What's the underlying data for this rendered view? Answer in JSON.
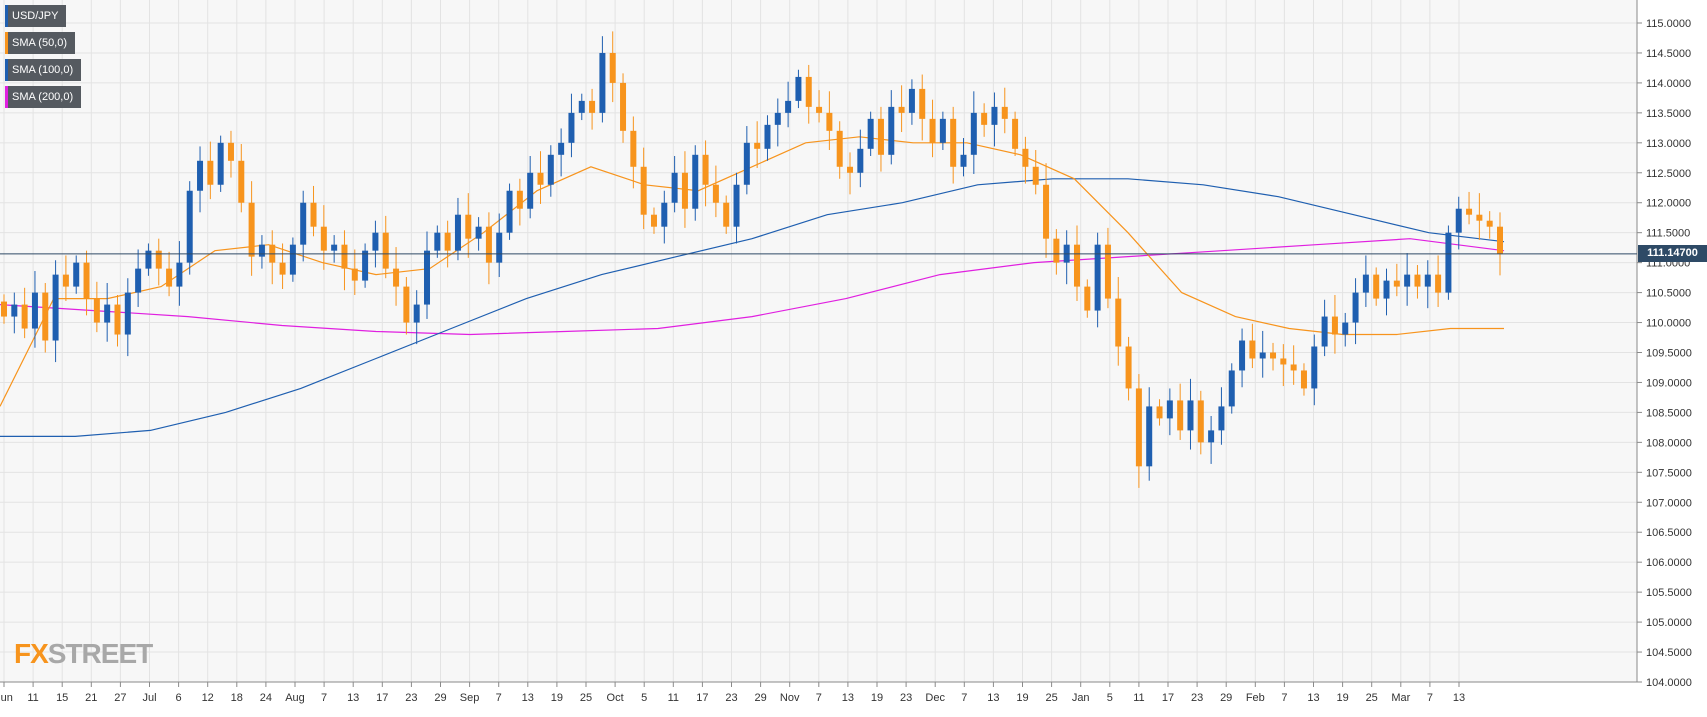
{
  "legend": [
    {
      "label": "USD/JPY",
      "color": "#1f5fb0"
    },
    {
      "label": "SMA (50,0)",
      "color": "#f7941d"
    },
    {
      "label": "SMA (100,0)",
      "color": "#1f5fb0"
    },
    {
      "label": "SMA (200,0)",
      "color": "#e020e0"
    }
  ],
  "price_tag": "111.14700",
  "logo": {
    "fx": "FX",
    "street": "STREET"
  },
  "chart_data": {
    "type": "candlestick",
    "symbol": "USD/JPY",
    "ylim": [
      104.0,
      115.0
    ],
    "y_ticks": [
      "115.0000",
      "114.5000",
      "114.0000",
      "113.5000",
      "113.0000",
      "112.5000",
      "112.0000",
      "111.5000",
      "111.0000",
      "110.5000",
      "110.0000",
      "109.5000",
      "109.0000",
      "108.5000",
      "108.0000",
      "107.5000",
      "107.0000",
      "106.5000",
      "106.0000",
      "105.5000",
      "105.0000",
      "104.5000",
      "104.0000"
    ],
    "x_labels": [
      "Jun",
      "11",
      "15",
      "21",
      "27",
      "Jul",
      "6",
      "12",
      "18",
      "24",
      "Aug",
      "7",
      "13",
      "17",
      "23",
      "29",
      "Sep",
      "7",
      "13",
      "19",
      "25",
      "Oct",
      "5",
      "11",
      "17",
      "23",
      "29",
      "Nov",
      "7",
      "13",
      "19",
      "23",
      "Dec",
      "7",
      "13",
      "19",
      "25",
      "Jan",
      "5",
      "11",
      "17",
      "23",
      "29",
      "Feb",
      "7",
      "13",
      "19",
      "25",
      "Mar",
      "7",
      "13"
    ],
    "last_price": 111.147,
    "colors": {
      "up": "#1f5fb0",
      "down": "#f7941d",
      "sma50": "#f7941d",
      "sma100": "#1f5fb0",
      "sma200": "#e020e0"
    },
    "grid": true,
    "close_path": [
      110.1,
      110.3,
      109.9,
      110.5,
      109.7,
      110.8,
      110.6,
      111.0,
      110.4,
      110.0,
      110.3,
      109.8,
      110.5,
      110.9,
      111.2,
      110.9,
      110.6,
      111.0,
      112.2,
      112.7,
      112.3,
      113.0,
      112.7,
      112.0,
      111.1,
      111.3,
      111.0,
      110.8,
      111.3,
      112.0,
      111.6,
      111.2,
      111.3,
      110.9,
      110.7,
      111.2,
      111.5,
      110.9,
      110.6,
      110.0,
      110.3,
      111.2,
      111.5,
      111.2,
      111.8,
      111.4,
      111.6,
      111.0,
      111.5,
      112.2,
      111.9,
      112.5,
      112.3,
      112.8,
      113.0,
      113.5,
      113.7,
      113.5,
      114.5,
      114.0,
      113.2,
      112.6,
      111.8,
      111.6,
      112.0,
      112.5,
      111.9,
      112.8,
      112.3,
      112.0,
      111.6,
      112.3,
      113.0,
      112.9,
      113.3,
      113.5,
      113.7,
      114.1,
      113.6,
      113.5,
      113.2,
      112.6,
      112.5,
      112.9,
      113.4,
      112.8,
      113.6,
      113.5,
      113.9,
      113.4,
      113.0,
      113.4,
      112.6,
      112.8,
      113.5,
      113.3,
      113.6,
      113.4,
      112.9,
      112.6,
      112.3,
      111.4,
      111.0,
      111.3,
      110.6,
      110.2,
      111.3,
      110.4,
      109.6,
      108.9,
      107.6,
      108.6,
      108.4,
      108.7,
      108.2,
      108.7,
      108.0,
      108.2,
      108.6,
      109.2,
      109.7,
      109.4,
      109.5,
      109.4,
      109.3,
      109.2,
      108.9,
      109.6,
      110.1,
      109.8,
      110.0,
      110.5,
      110.8,
      110.4,
      110.7,
      110.6,
      110.8,
      110.6,
      110.8,
      110.5,
      111.5,
      111.9,
      111.8,
      111.7,
      111.6,
      111.147
    ],
    "sma50": [
      108.6,
      110.4,
      110.4,
      110.6,
      111.2,
      111.3,
      111.0,
      110.8,
      110.9,
      111.5,
      112.2,
      112.6,
      112.3,
      112.2,
      112.6,
      113.0,
      113.1,
      113.0,
      113.0,
      112.8,
      112.4,
      111.5,
      110.5,
      110.1,
      109.9,
      109.8,
      109.8,
      109.9,
      109.9
    ],
    "sma100": [
      108.1,
      108.1,
      108.2,
      108.5,
      108.9,
      109.4,
      109.9,
      110.4,
      110.8,
      111.1,
      111.4,
      111.8,
      112.0,
      112.3,
      112.4,
      112.4,
      112.3,
      112.1,
      111.8,
      111.5,
      111.35
    ],
    "sma200": [
      110.3,
      110.2,
      110.1,
      109.95,
      109.85,
      109.8,
      109.85,
      109.9,
      110.1,
      110.4,
      110.8,
      111.0,
      111.1,
      111.2,
      111.3,
      111.4,
      111.2
    ]
  }
}
